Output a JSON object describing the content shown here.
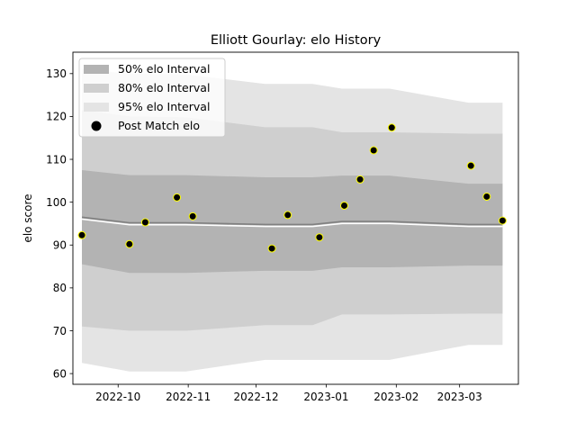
{
  "chart_data": {
    "type": "line",
    "title": "Elliott Gourlay: elo History",
    "xlabel": "",
    "ylabel": "elo score",
    "xlim": [
      "2022-09-11",
      "2023-03-27"
    ],
    "ylim": [
      57.5,
      135
    ],
    "x_ticks": [
      {
        "date": "2022-10-01",
        "label": "2022-10"
      },
      {
        "date": "2022-11-01",
        "label": "2022-11"
      },
      {
        "date": "2022-12-01",
        "label": "2022-12"
      },
      {
        "date": "2023-01-01",
        "label": "2023-01"
      },
      {
        "date": "2023-02-01",
        "label": "2023-02"
      },
      {
        "date": "2023-03-01",
        "label": "2023-03"
      }
    ],
    "y_ticks": [
      60,
      70,
      80,
      90,
      100,
      110,
      120,
      130
    ],
    "grid": false,
    "legend_position": "top-left",
    "legend": [
      {
        "label": "50% elo Interval",
        "kind": "band50"
      },
      {
        "label": "80% elo Interval",
        "kind": "band80"
      },
      {
        "label": "95% elo Interval",
        "kind": "band95"
      },
      {
        "label": "Post Match elo",
        "kind": "point"
      }
    ],
    "interval_dates": [
      "2022-09-15",
      "2022-10-06",
      "2022-10-31",
      "2022-12-05",
      "2022-12-26",
      "2023-01-08",
      "2023-01-29",
      "2023-03-05",
      "2023-03-20"
    ],
    "mean": [
      96.5,
      95.2,
      95.2,
      94.8,
      94.8,
      95.5,
      95.5,
      94.8,
      94.8
    ],
    "band50": {
      "lower": [
        85.5,
        83.5,
        83.5,
        84.0,
        84.0,
        84.8,
        84.8,
        85.2,
        85.2
      ],
      "upper": [
        107.5,
        106.3,
        106.3,
        105.8,
        105.8,
        106.2,
        106.2,
        104.3,
        104.3
      ]
    },
    "band80": {
      "lower": [
        71.0,
        70.0,
        70.0,
        71.3,
        71.3,
        73.8,
        73.8,
        74.0,
        74.0
      ],
      "upper": [
        121.5,
        120.0,
        119.8,
        117.5,
        117.5,
        116.3,
        116.3,
        116.0,
        116.0
      ]
    },
    "band95": {
      "lower": [
        62.5,
        60.5,
        60.5,
        63.2,
        63.2,
        63.2,
        63.2,
        66.7,
        66.7
      ],
      "upper": [
        131.0,
        130.0,
        129.8,
        127.6,
        127.6,
        126.5,
        126.5,
        123.2,
        123.2
      ]
    },
    "points": [
      {
        "date": "2022-09-15",
        "elo": 92.3
      },
      {
        "date": "2022-10-06",
        "elo": 90.2
      },
      {
        "date": "2022-10-13",
        "elo": 95.3
      },
      {
        "date": "2022-10-27",
        "elo": 101.1
      },
      {
        "date": "2022-11-03",
        "elo": 96.7
      },
      {
        "date": "2022-12-08",
        "elo": 89.2
      },
      {
        "date": "2022-12-15",
        "elo": 97.0
      },
      {
        "date": "2022-12-29",
        "elo": 91.8
      },
      {
        "date": "2023-01-09",
        "elo": 99.2
      },
      {
        "date": "2023-01-16",
        "elo": 105.3
      },
      {
        "date": "2023-01-22",
        "elo": 112.1
      },
      {
        "date": "2023-01-30",
        "elo": 117.4
      },
      {
        "date": "2023-03-06",
        "elo": 108.5
      },
      {
        "date": "2023-03-13",
        "elo": 101.3
      },
      {
        "date": "2023-03-20",
        "elo": 95.7
      }
    ],
    "colors": {
      "band50": "#b3b3b3",
      "band80": "#cfcfcf",
      "band95": "#e4e4e4",
      "mean_line": "#808080",
      "mean_highlight": "#ffffff",
      "point_fill": "#000000",
      "point_edge": "#ffff00"
    }
  }
}
